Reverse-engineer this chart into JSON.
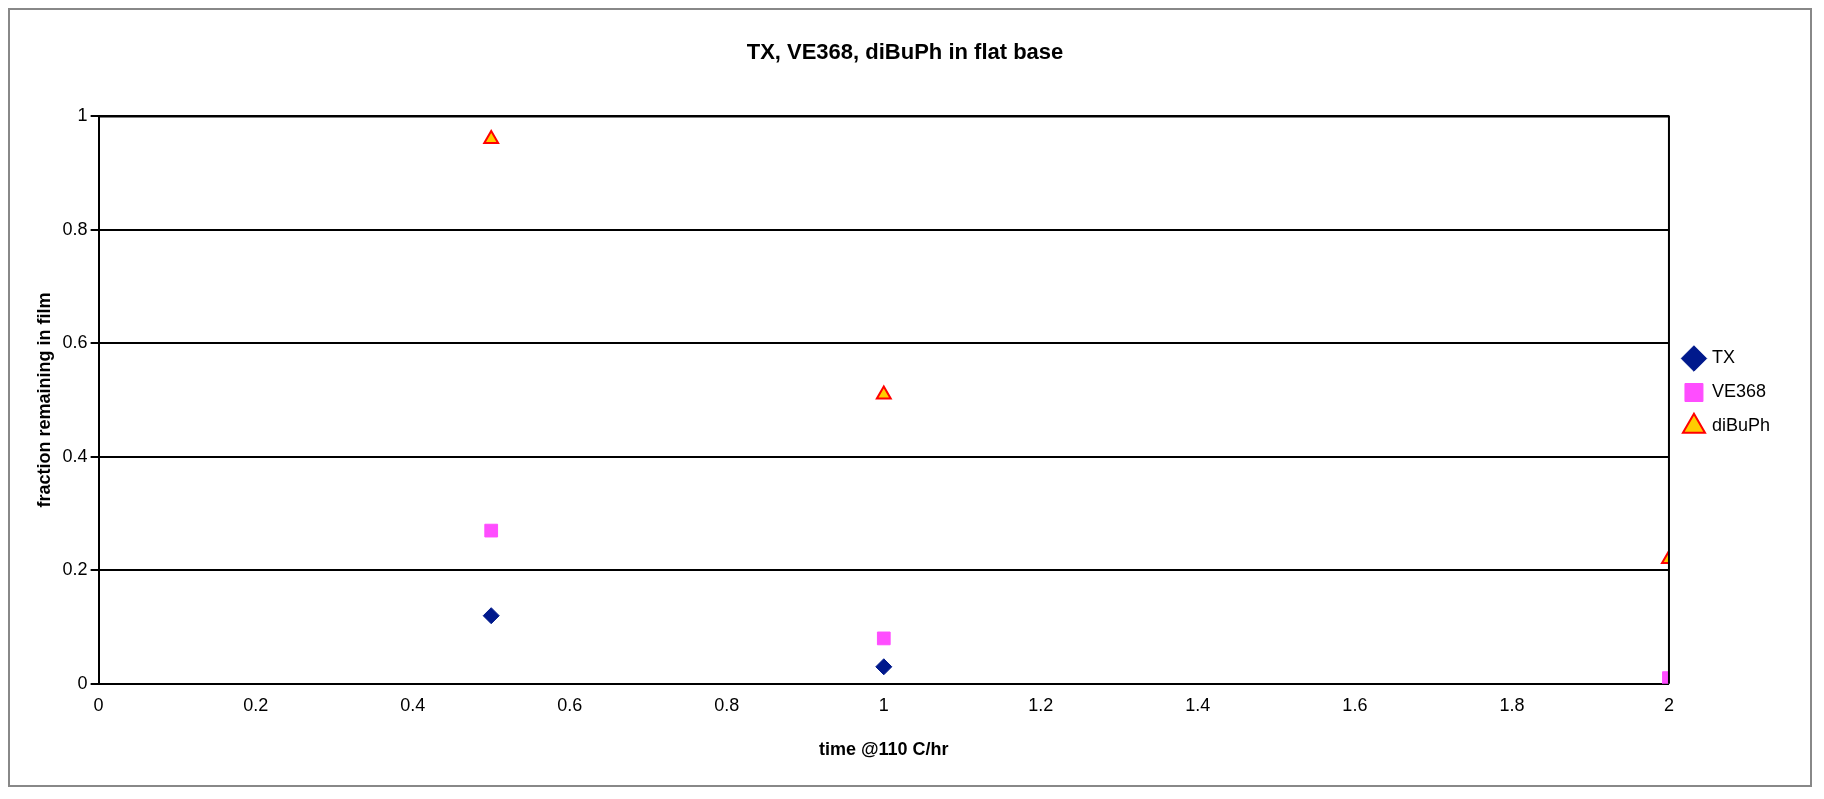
{
  "chart_data": {
    "type": "scatter",
    "title": "TX, VE368, diBuPh in flat base",
    "xlabel": "time @110 C/hr",
    "ylabel": "fraction remaining in film",
    "xlim": [
      0,
      2
    ],
    "xticks": [
      0,
      0.2,
      0.4,
      0.6,
      0.8,
      1,
      1.2,
      1.4,
      1.6,
      1.8,
      2
    ],
    "ylim": [
      0,
      1
    ],
    "yticks": [
      0,
      0.2,
      0.4,
      0.6,
      0.8,
      1
    ],
    "grid": "y",
    "legend": "right",
    "series": [
      {
        "name": "TX",
        "color": "#00198c",
        "marker": "diamond",
        "x": [
          0.5,
          1
        ],
        "values": [
          0.12,
          0.03
        ]
      },
      {
        "name": "VE368",
        "color": "#ff4dff",
        "marker": "square",
        "x": [
          0.5,
          1,
          2
        ],
        "values": [
          0.27,
          0.08,
          0.01
        ]
      },
      {
        "name": "diBuPh",
        "color": "#ffcc00",
        "marker": "triangle",
        "x": [
          0.5,
          1,
          2
        ],
        "values": [
          0.96,
          0.51,
          0.22
        ]
      }
    ]
  }
}
